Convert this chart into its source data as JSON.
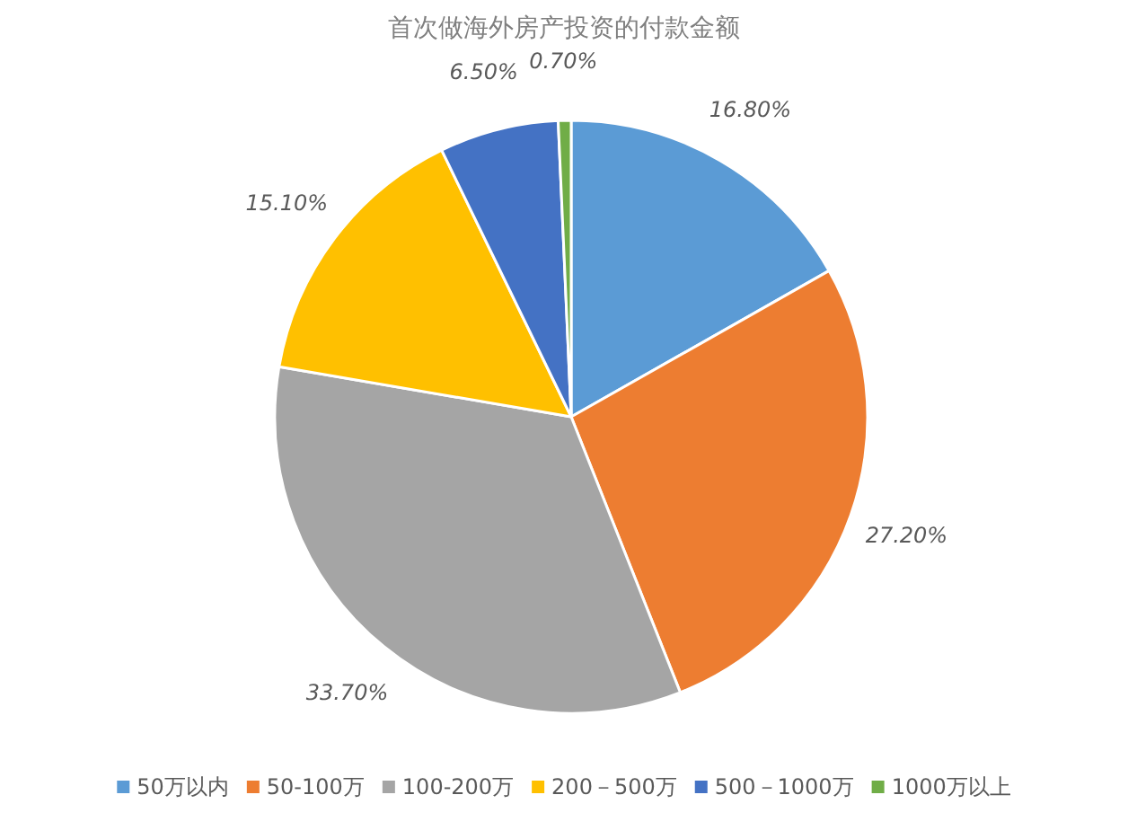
{
  "chart_data": {
    "type": "pie",
    "title": "首次做海外房产投资的付款金额",
    "categories": [
      "50万以内",
      "50-100万",
      "100-200万",
      "200－500万",
      "500－1000万",
      "1000万以上"
    ],
    "values": [
      16.8,
      27.2,
      33.7,
      15.1,
      6.5,
      0.7
    ],
    "value_labels": [
      "16.80%",
      "27.20%",
      "33.70%",
      "15.10%",
      "6.50%",
      "0.70%"
    ],
    "colors": [
      "#5b9bd5",
      "#ed7d31",
      "#a5a5a5",
      "#ffc000",
      "#4472c4",
      "#70ad47"
    ],
    "legend": "bottom"
  }
}
